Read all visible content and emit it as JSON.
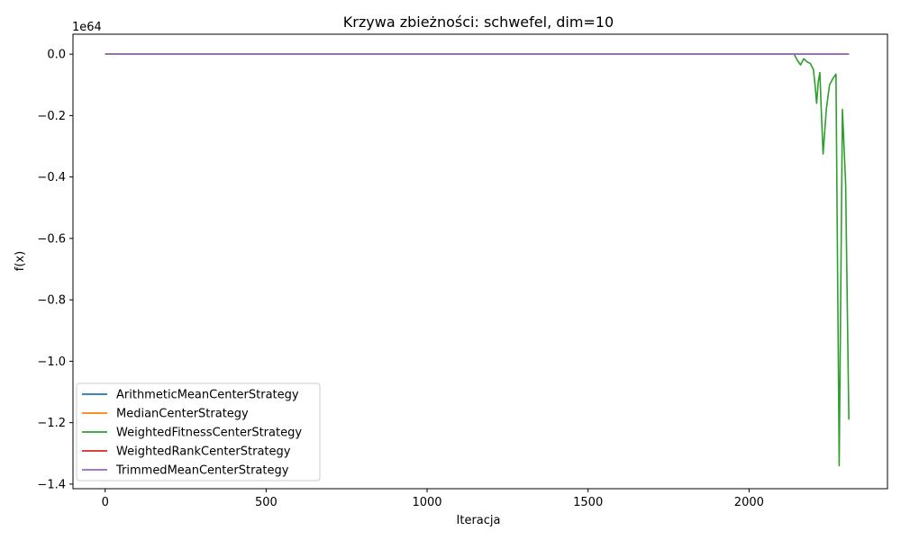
{
  "chart_data": {
    "type": "line",
    "title": "Krzywa zbieżności: schwefel, dim=10",
    "xlabel": "Iteracja",
    "ylabel": "f(x)",
    "y_offset_label": "1e64",
    "xlim": [
      -100,
      2430
    ],
    "ylim": [
      -1.415,
      0.065
    ],
    "xticks": [
      0,
      500,
      1000,
      1500,
      2000
    ],
    "xtick_labels": [
      "0",
      "500",
      "1000",
      "1500",
      "2000"
    ],
    "yticks": [
      0.0,
      -0.2,
      -0.4,
      -0.6,
      -0.8,
      -1.0,
      -1.2,
      -1.4
    ],
    "ytick_labels": [
      "0.0",
      "−0.2",
      "−0.4",
      "−0.6",
      "−0.8",
      "−1.0",
      "−1.2",
      "−1.4"
    ],
    "grid": false,
    "legend_position": "lower-left",
    "series": [
      {
        "name": "ArithmeticMeanCenterStrategy",
        "color": "#1f77b4",
        "x": [
          0,
          2310
        ],
        "y": [
          0,
          0
        ]
      },
      {
        "name": "MedianCenterStrategy",
        "color": "#ff7f0e",
        "x": [
          0,
          2310
        ],
        "y": [
          0,
          0
        ]
      },
      {
        "name": "WeightedFitnessCenterStrategy",
        "color": "#2ca02c",
        "x": [
          0,
          2140,
          2150,
          2160,
          2170,
          2180,
          2190,
          2200,
          2205,
          2210,
          2215,
          2220,
          2225,
          2230,
          2240,
          2250,
          2260,
          2270,
          2280,
          2290,
          2300,
          2310
        ],
        "y": [
          0,
          0,
          -0.02,
          -0.035,
          -0.015,
          -0.025,
          -0.03,
          -0.05,
          -0.1,
          -0.16,
          -0.09,
          -0.06,
          -0.2,
          -0.325,
          -0.18,
          -0.1,
          -0.08,
          -0.065,
          -1.34,
          -0.18,
          -0.42,
          -1.19
        ]
      },
      {
        "name": "WeightedRankCenterStrategy",
        "color": "#d62728",
        "x": [
          0,
          2310
        ],
        "y": [
          0,
          0
        ]
      },
      {
        "name": "TrimmedMeanCenterStrategy",
        "color": "#9467bd",
        "x": [
          0,
          2310
        ],
        "y": [
          0,
          0
        ]
      }
    ]
  }
}
